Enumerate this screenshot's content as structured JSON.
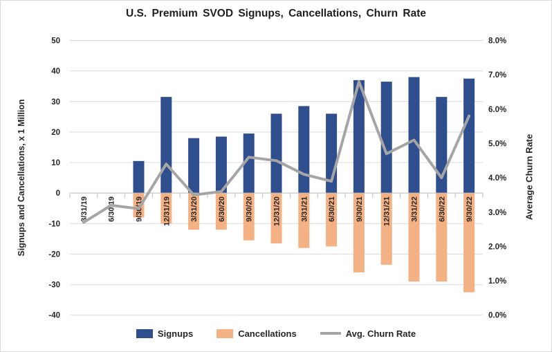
{
  "chart_data": {
    "type": "combo-bar-line",
    "title": "U.S. Premium SVOD Signups, Cancellations, Churn Rate",
    "categories": [
      "3/31/19",
      "6/30/19",
      "9/30/19",
      "12/31/19",
      "3/31/20",
      "6/30/20",
      "9/30/20",
      "12/31/20",
      "3/31/21",
      "6/30/21",
      "9/30/21",
      "12/31/21",
      "3/31/22",
      "6/30/22",
      "9/30/22"
    ],
    "series": [
      {
        "name": "Signups",
        "type": "bar",
        "axis": "left",
        "color": "#2E4E8E",
        "values": [
          0,
          0,
          10.5,
          31.5,
          18,
          18.5,
          19.5,
          26,
          28.5,
          26,
          37,
          36.5,
          38,
          31.5,
          37.5
        ]
      },
      {
        "name": "Cancellations",
        "type": "bar",
        "axis": "left",
        "color": "#F4B183",
        "values": [
          0,
          0,
          -8,
          -10,
          -12,
          -12,
          -15.5,
          -16.5,
          -18,
          -17.5,
          -26,
          -23.5,
          -29,
          -29,
          -32.5
        ]
      },
      {
        "name": "Avg. Churn Rate",
        "type": "line",
        "axis": "right",
        "color": "#A5A5A5",
        "values": [
          2.7,
          3.2,
          3.1,
          4.4,
          3.5,
          3.6,
          4.6,
          4.5,
          4.1,
          3.9,
          6.8,
          4.7,
          5.1,
          4.0,
          5.8
        ]
      }
    ],
    "left_axis": {
      "label": "Signups and Cancellations, x 1 Million",
      "ticks": [
        "50",
        "40",
        "30",
        "20",
        "10",
        "0",
        "-10",
        "-20",
        "-30",
        "-40"
      ],
      "min": -40,
      "max": 50
    },
    "right_axis": {
      "label": "Average Churn Rate",
      "ticks": [
        "8.0%",
        "7.0%",
        "6.0%",
        "5.0%",
        "4.0%",
        "3.0%",
        "2.0%",
        "1.0%",
        "0.0%"
      ],
      "min": 0,
      "max": 8
    },
    "grid": true,
    "legend_position": "bottom"
  },
  "colors": {
    "grid": "#D9D9D9",
    "axis": "#BFBFBF",
    "text": "#262626",
    "background": "#FFFFFF"
  }
}
